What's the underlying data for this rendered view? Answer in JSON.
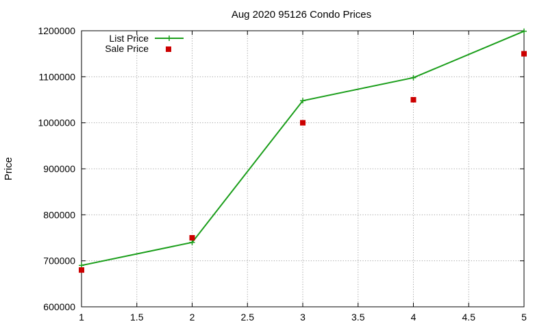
{
  "chart_data": {
    "type": "line",
    "title": "Aug 2020 95126 Condo Prices",
    "xlabel": "",
    "ylabel": "Price",
    "xlim": [
      1,
      5
    ],
    "ylim": [
      600000,
      1200000
    ],
    "x_ticks": [
      1,
      1.5,
      2,
      2.5,
      3,
      3.5,
      4,
      4.5,
      5
    ],
    "y_ticks": [
      600000,
      700000,
      800000,
      900000,
      1000000,
      1100000,
      1200000
    ],
    "grid": true,
    "legend_position": "top-left",
    "series": [
      {
        "name": "List Price",
        "kind": "line-points",
        "marker": "plus",
        "color": "#1a9e1a",
        "x": [
          1,
          2,
          3,
          4,
          5
        ],
        "y": [
          690000,
          740000,
          1048000,
          1098000,
          1199000
        ]
      },
      {
        "name": "Sale Price",
        "kind": "points",
        "marker": "square",
        "color": "#cc0000",
        "x": [
          1,
          2,
          3,
          4,
          5
        ],
        "y": [
          680000,
          750000,
          1000000,
          1050000,
          1150000
        ]
      }
    ]
  }
}
